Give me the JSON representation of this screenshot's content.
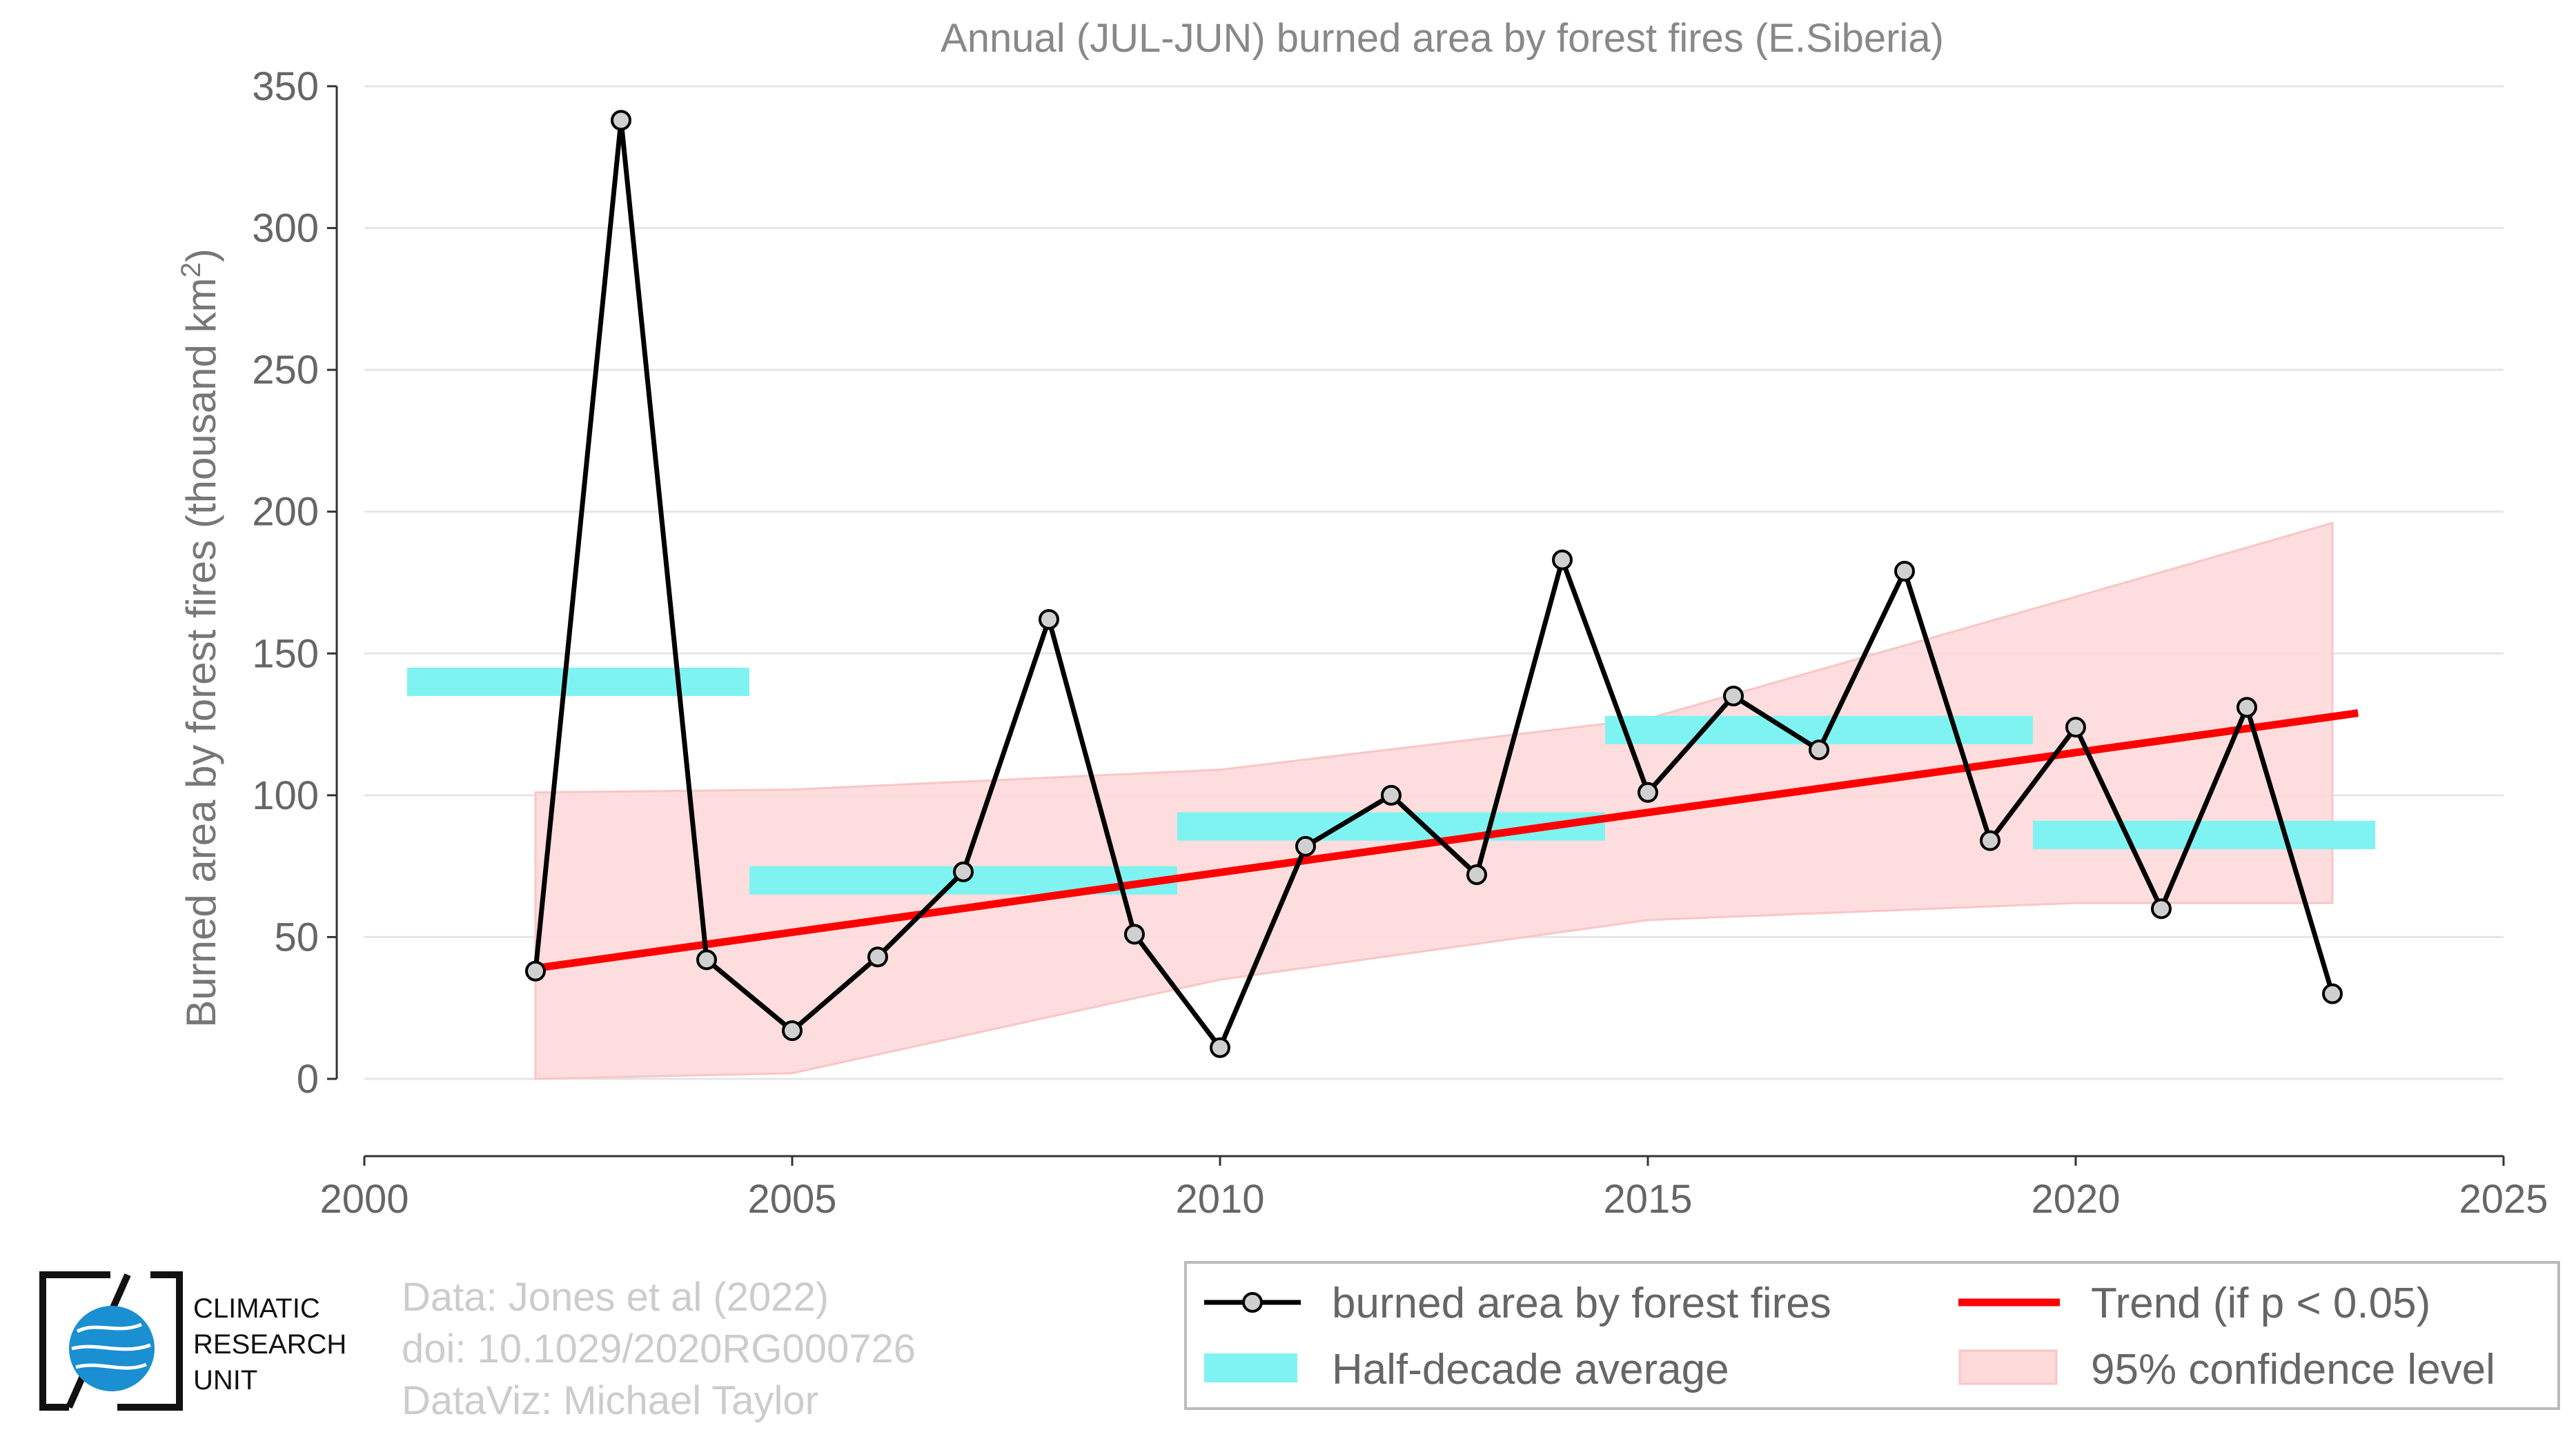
{
  "chart_data": {
    "type": "line",
    "title": "Annual (JUL-JUN) burned area by forest fires (E.Siberia)",
    "ylabel": "Burned area by forest fires (thousand km",
    "ylabel_sup": "2",
    "ylabel_end": ")",
    "xlabel": "",
    "xlim": [
      2000,
      2025
    ],
    "ylim": [
      0,
      350
    ],
    "xticks": [
      2000,
      2005,
      2010,
      2015,
      2020,
      2025
    ],
    "yticks": [
      0,
      50,
      100,
      150,
      200,
      250,
      300,
      350
    ],
    "grid": true,
    "series": [
      {
        "name": "burned area by forest fires",
        "color": "#000000",
        "marker_fill": "#d0d0d0",
        "x": [
          2002,
          2003,
          2004,
          2005,
          2006,
          2007,
          2008,
          2009,
          2010,
          2011,
          2012,
          2013,
          2014,
          2015,
          2016,
          2017,
          2018,
          2019,
          2020,
          2021,
          2022,
          2023
        ],
        "y": [
          38,
          338,
          42,
          17,
          43,
          73,
          162,
          51,
          11,
          82,
          100,
          72,
          183,
          101,
          135,
          116,
          179,
          84,
          124,
          60,
          131,
          30
        ]
      }
    ],
    "half_decade_average": {
      "name": "Half-decade average",
      "color": "#7ff3f1",
      "segments": [
        {
          "x0": 2000.5,
          "x1": 2004.5,
          "y": 140
        },
        {
          "x0": 2004.5,
          "x1": 2009.5,
          "y": 70
        },
        {
          "x0": 2009.5,
          "x1": 2014.5,
          "y": 89
        },
        {
          "x0": 2014.5,
          "x1": 2019.5,
          "y": 123
        },
        {
          "x0": 2019.5,
          "x1": 2023.5,
          "y": 86
        }
      ]
    },
    "trend": {
      "name": "Trend (if p < 0.05)",
      "color": "#ff0000",
      "x": [
        2002,
        2023.3
      ],
      "y": [
        39,
        129
      ]
    },
    "confidence": {
      "name": "95% confidence level",
      "color": "#fdd9d9",
      "x": [
        2002,
        2005,
        2010,
        2015,
        2020,
        2023
      ],
      "upper": [
        101,
        102,
        109,
        127,
        170,
        196
      ],
      "lower": [
        0,
        2,
        35,
        56,
        62,
        62
      ]
    },
    "legend_position": "bottom-right"
  },
  "credits": {
    "line1": "Data: Jones et al (2022)",
    "line2": "doi: 10.1029/2020RG000726",
    "line3": "DataViz: Michael Taylor"
  },
  "logo": {
    "line1": "CLIMATIC",
    "line2": "RESEARCH",
    "line3": "UNIT",
    "icon": "globe-icon"
  }
}
